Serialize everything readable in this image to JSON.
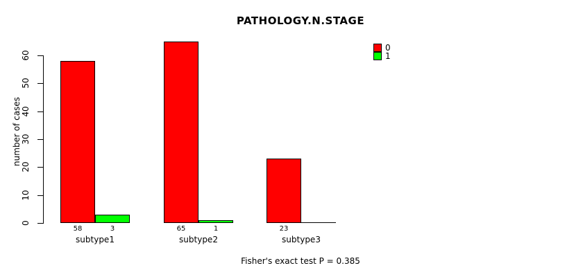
{
  "figure": {
    "title": "PATHOLOGY.N.STAGE",
    "footer": "Fisher's exact test P = 0.385"
  },
  "chart_data": {
    "type": "bar",
    "grouped": true,
    "title": "PATHOLOGY.N.STAGE",
    "xlabel": "",
    "ylabel": "number of cases",
    "categories": [
      "subtype1",
      "subtype2",
      "subtype3"
    ],
    "series": [
      {
        "name": "0",
        "color": "#ff0000",
        "values": [
          58,
          65,
          23
        ]
      },
      {
        "name": "1",
        "color": "#00ff00",
        "values": [
          3,
          1,
          0
        ]
      }
    ],
    "value_labels_under_bars": [
      [
        "58",
        "3"
      ],
      [
        "65",
        "1"
      ],
      [
        "23",
        ""
      ]
    ],
    "yticks": [
      0,
      10,
      20,
      30,
      40,
      50,
      60
    ],
    "ylim": [
      0,
      65
    ],
    "grid": false,
    "bar_border_color": "#000000",
    "axis_color": "#000000",
    "background_color": "#ffffff",
    "legend": {
      "position": "top-right",
      "entries": [
        {
          "label": "0",
          "color": "#ff0000"
        },
        {
          "label": "1",
          "color": "#00ff00"
        }
      ]
    },
    "annotation": "Fisher's exact test P = 0.385"
  }
}
